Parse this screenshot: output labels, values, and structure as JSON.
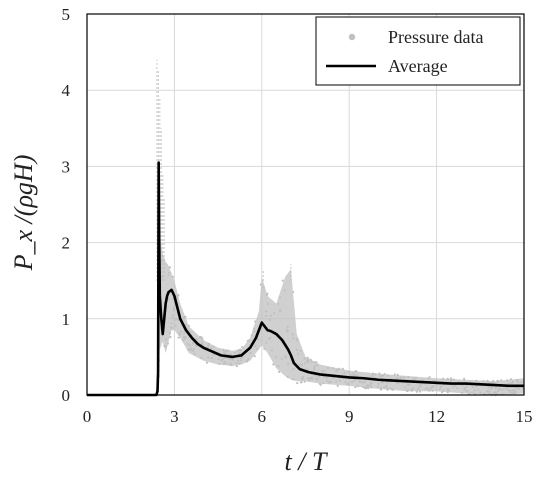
{
  "chart_data": {
    "type": "line",
    "title": "",
    "xlabel": "t / T",
    "ylabel": "P_x /(ρgH)",
    "xlim": [
      0,
      15
    ],
    "ylim": [
      0,
      5
    ],
    "xticks": [
      0,
      3,
      6,
      9,
      12,
      15
    ],
    "yticks": [
      0,
      1,
      2,
      3,
      4,
      5
    ],
    "grid": true,
    "legend_position": "top-right",
    "colors": {
      "pressure": "#c0c0c0",
      "average": "#000000",
      "grid": "#d9d9d9"
    },
    "series": [
      {
        "name": "Pressure data",
        "kind": "scatter-band",
        "band": {
          "x": [
            2.45,
            2.5,
            2.6,
            2.7,
            2.8,
            2.9,
            3.0,
            3.2,
            3.5,
            4.0,
            4.5,
            5.0,
            5.3,
            5.6,
            5.9,
            6.0,
            6.2,
            6.5,
            6.8,
            7.0,
            7.2,
            7.5,
            8.0,
            9.0,
            10.0,
            11.0,
            12.0,
            13.0,
            14.0,
            15.0
          ],
          "lower": [
            0.0,
            0.6,
            0.7,
            0.55,
            0.7,
            0.85,
            0.85,
            0.75,
            0.55,
            0.45,
            0.4,
            0.38,
            0.4,
            0.45,
            0.6,
            0.65,
            0.55,
            0.35,
            0.25,
            0.2,
            0.18,
            0.18,
            0.15,
            0.12,
            0.08,
            0.05,
            0.05,
            0.02,
            0.0,
            0.02
          ],
          "upper": [
            0.0,
            2.1,
            1.85,
            1.75,
            1.7,
            1.6,
            1.5,
            1.2,
            0.9,
            0.72,
            0.62,
            0.58,
            0.6,
            0.75,
            1.1,
            1.55,
            1.3,
            1.2,
            1.55,
            1.65,
            0.8,
            0.5,
            0.4,
            0.32,
            0.28,
            0.25,
            0.22,
            0.2,
            0.18,
            0.22
          ]
        },
        "spikes": [
          {
            "x": 2.4,
            "y": 4.4
          },
          {
            "x": 2.45,
            "y": 4.25
          },
          {
            "x": 2.5,
            "y": 3.9
          },
          {
            "x": 2.55,
            "y": 3.5
          },
          {
            "x": 2.6,
            "y": 2.9
          },
          {
            "x": 2.65,
            "y": 2.6
          },
          {
            "x": 6.05,
            "y": 1.65
          },
          {
            "x": 7.0,
            "y": 1.72
          }
        ]
      },
      {
        "name": "Average",
        "kind": "line",
        "x": [
          0.0,
          2.38,
          2.42,
          2.44,
          2.46,
          2.48,
          2.5,
          2.55,
          2.6,
          2.65,
          2.7,
          2.75,
          2.8,
          2.9,
          3.0,
          3.1,
          3.2,
          3.4,
          3.6,
          3.8,
          4.0,
          4.3,
          4.6,
          5.0,
          5.3,
          5.6,
          5.8,
          5.9,
          6.0,
          6.1,
          6.2,
          6.3,
          6.5,
          6.7,
          6.9,
          7.0,
          7.1,
          7.3,
          7.6,
          8.0,
          8.5,
          9.0,
          9.5,
          10.0,
          10.5,
          11.0,
          11.5,
          12.0,
          12.5,
          13.0,
          13.5,
          14.0,
          14.5,
          15.0
        ],
        "y": [
          0.0,
          0.0,
          0.05,
          0.3,
          3.05,
          2.0,
          1.3,
          1.0,
          0.8,
          1.0,
          1.2,
          1.3,
          1.35,
          1.38,
          1.3,
          1.15,
          1.0,
          0.85,
          0.75,
          0.67,
          0.62,
          0.57,
          0.52,
          0.5,
          0.52,
          0.62,
          0.75,
          0.85,
          0.95,
          0.9,
          0.85,
          0.84,
          0.8,
          0.72,
          0.6,
          0.52,
          0.42,
          0.34,
          0.3,
          0.27,
          0.25,
          0.23,
          0.22,
          0.2,
          0.19,
          0.18,
          0.17,
          0.16,
          0.15,
          0.15,
          0.14,
          0.13,
          0.12,
          0.12
        ]
      }
    ]
  },
  "legend": {
    "items": [
      {
        "label": "Pressure data",
        "marker": "dot"
      },
      {
        "label": "Average",
        "marker": "line"
      }
    ]
  }
}
